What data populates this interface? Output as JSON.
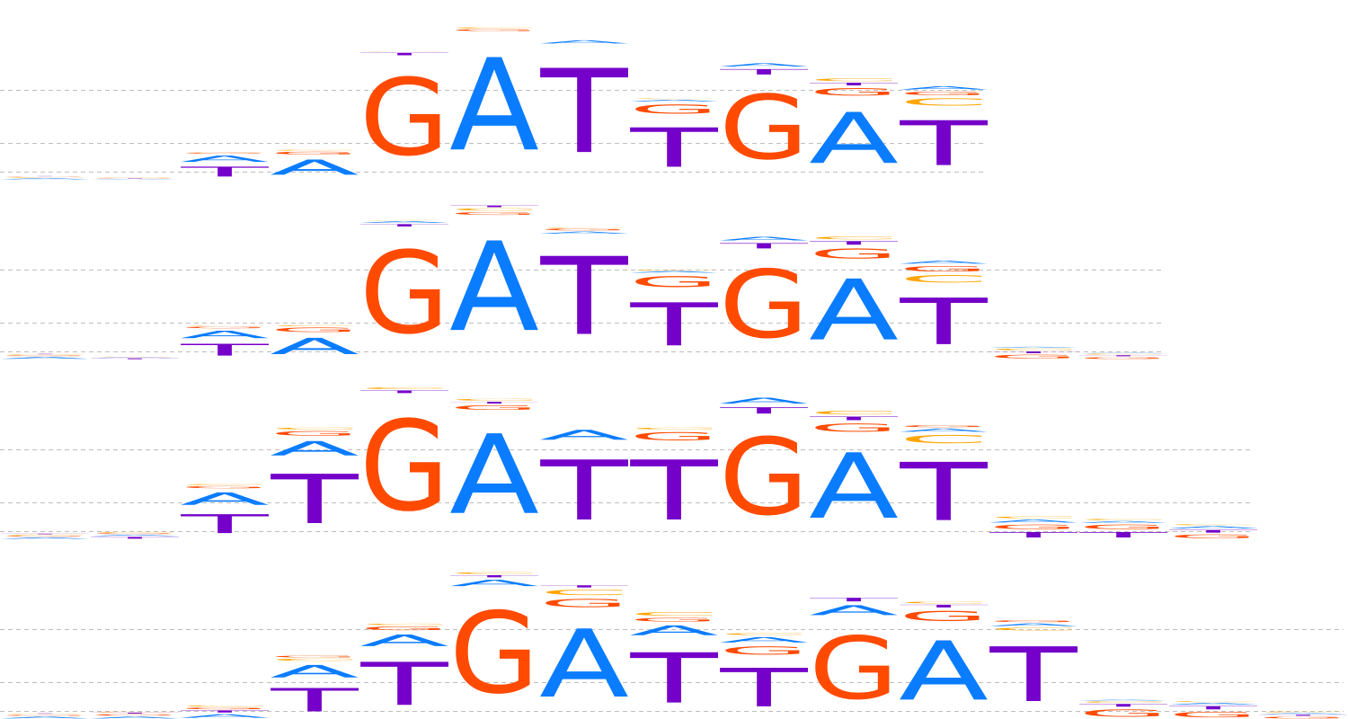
{
  "colors": {
    "A": "#0a7cff",
    "C": "#ffa500",
    "G": "#ff4a00",
    "T": "#7400c9",
    "grid": "#bdbdbd"
  },
  "chart_data": [
    {
      "type": "sequence-logo",
      "positions": [
        {
          "A": 0.07,
          "C": 0.03,
          "G": 0.02,
          "T": 0.01
        },
        {
          "A": 0.03,
          "C": 0.01,
          "G": 0.02,
          "T": 0.02
        },
        {
          "A": 0.35,
          "C": 0.02,
          "G": 0.05,
          "T": 0.55
        },
        {
          "A": 0.85,
          "C": 0.05,
          "G": 0.15,
          "T": 0.0
        },
        {
          "A": 0.0,
          "C": 0.02,
          "G": 4.3,
          "T": 0.14
        },
        {
          "A": 5.15,
          "C": 0.06,
          "G": 0.1,
          "T": 0.0
        },
        {
          "A": 0.18,
          "C": 0.0,
          "G": 0.0,
          "T": 4.7
        },
        {
          "A": 0.1,
          "C": 0.03,
          "G": 0.5,
          "T": 2.2
        },
        {
          "A": 0.18,
          "C": 0.0,
          "G": 3.6,
          "T": 0.3
        },
        {
          "A": 2.85,
          "C": 0.15,
          "G": 0.4,
          "T": 0.15
        },
        {
          "A": 0.18,
          "C": 0.4,
          "G": 0.2,
          "T": 2.5
        }
      ]
    },
    {
      "type": "sequence-logo",
      "positions": [
        {
          "A": 0.11,
          "C": 0.03,
          "G": 0.04,
          "T": 0.02
        },
        {
          "A": 0.03,
          "C": 0.01,
          "G": 0.01,
          "T": 0.05
        },
        {
          "A": 0.41,
          "C": 0.02,
          "G": 0.09,
          "T": 0.66
        },
        {
          "A": 0.91,
          "C": 0.05,
          "G": 0.24,
          "T": 0.0
        },
        {
          "A": 0.1,
          "C": 0.02,
          "G": 4.6,
          "T": 0.13
        },
        {
          "A": 5.0,
          "C": 0.13,
          "G": 0.15,
          "T": 0.09
        },
        {
          "A": 0.12,
          "C": 0.03,
          "G": 0.1,
          "T": 4.35
        },
        {
          "A": 0.09,
          "C": 0.04,
          "G": 0.6,
          "T": 2.4
        },
        {
          "A": 0.2,
          "C": 0.0,
          "G": 3.8,
          "T": 0.3
        },
        {
          "A": 3.4,
          "C": 0.15,
          "G": 0.55,
          "T": 0.2
        },
        {
          "A": 0.16,
          "C": 0.4,
          "G": 0.3,
          "T": 2.6
        },
        {
          "A": 0.05,
          "C": 0.1,
          "G": 0.2,
          "T": 0.1
        },
        {
          "A": 0.03,
          "C": 0.05,
          "G": 0.1,
          "T": 0.06
        }
      ]
    },
    {
      "type": "sequence-logo",
      "positions": [
        {
          "A": 0.08,
          "C": 0.04,
          "G": 0.05,
          "T": 0.03
        },
        {
          "A": 0.07,
          "C": 0.04,
          "G": 0.05,
          "T": 0.1
        },
        {
          "A": 0.7,
          "C": 0.06,
          "G": 0.12,
          "T": 1.05
        },
        {
          "A": 0.8,
          "C": 0.1,
          "G": 0.25,
          "T": 2.75
        },
        {
          "A": 0.0,
          "C": 0.1,
          "G": 5.05,
          "T": 0.15
        },
        {
          "A": 4.45,
          "C": 0.1,
          "G": 0.25,
          "T": 0.1
        },
        {
          "A": 0.55,
          "C": 0.0,
          "G": 0.0,
          "T": 3.35
        },
        {
          "A": 0.0,
          "C": 0.1,
          "G": 0.45,
          "T": 3.35
        },
        {
          "A": 0.33,
          "C": 0.0,
          "G": 4.3,
          "T": 0.35
        },
        {
          "A": 3.65,
          "C": 0.2,
          "G": 0.45,
          "T": 0.2
        },
        {
          "A": 0.18,
          "C": 0.45,
          "G": 0.1,
          "T": 3.25
        },
        {
          "A": 0.16,
          "C": 0.1,
          "G": 0.25,
          "T": 0.3
        },
        {
          "A": 0.1,
          "C": 0.07,
          "G": 0.25,
          "T": 0.3
        },
        {
          "A": 0.13,
          "C": 0.05,
          "G": 0.2,
          "T": 0.15
        }
      ]
    },
    {
      "type": "sequence-logo",
      "positions": [
        {
          "A": 0.1,
          "C": 0.03,
          "G": 0.05,
          "T": 0.02
        },
        {
          "A": 0.1,
          "C": 0.03,
          "G": 0.08,
          "T": 0.05
        },
        {
          "A": 0.2,
          "C": 0.06,
          "G": 0.1,
          "T": 0.12
        },
        {
          "A": 0.7,
          "C": 0.12,
          "G": 0.1,
          "T": 1.3
        },
        {
          "A": 0.65,
          "C": 0.08,
          "G": 0.2,
          "T": 2.4
        },
        {
          "A": 0.35,
          "C": 0.1,
          "G": 4.55,
          "T": 0.12
        },
        {
          "A": 3.8,
          "C": 0.3,
          "G": 0.45,
          "T": 0.12
        },
        {
          "A": 0.55,
          "C": 0.2,
          "G": 0.2,
          "T": 2.8
        },
        {
          "A": 0.3,
          "C": 0.1,
          "G": 0.45,
          "T": 2.15
        },
        {
          "A": 0.55,
          "C": 0.0,
          "G": 3.5,
          "T": 0.2
        },
        {
          "A": 3.3,
          "C": 0.1,
          "G": 0.55,
          "T": 0.15
        },
        {
          "A": 0.15,
          "C": 0.15,
          "G": 0.1,
          "T": 3.05
        },
        {
          "A": 0.05,
          "C": 0.08,
          "G": 0.4,
          "T": 0.15
        },
        {
          "A": 0.1,
          "C": 0.05,
          "G": 0.3,
          "T": 0.18
        },
        {
          "A": 0.06,
          "C": 0.05,
          "G": 0.1,
          "T": 0.06
        }
      ]
    }
  ]
}
